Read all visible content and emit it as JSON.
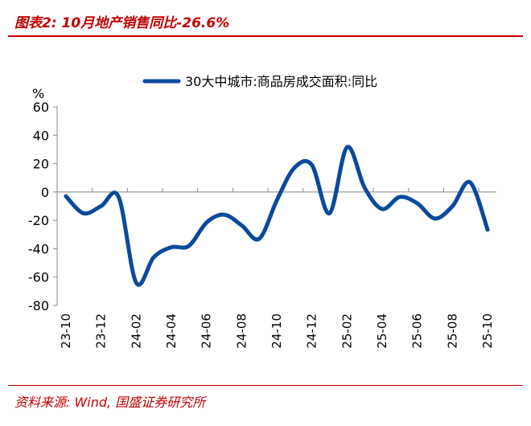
{
  "header": {
    "title": "图表2:  10月地产销售同比-26.6%"
  },
  "footer": {
    "source": "资料来源: Wind, 国盛证券研究所"
  },
  "colors": {
    "accent": "#c00000",
    "series": "#0a4a9c",
    "axis": "#888888"
  },
  "chart_data": {
    "type": "line",
    "title": "",
    "ylabel": "%",
    "ylim": [
      -80,
      60
    ],
    "yticks": [
      60,
      40,
      20,
      0,
      -20,
      -40,
      -60,
      -80
    ],
    "grid": false,
    "legend": "top",
    "categories": [
      "23-10",
      "23-11",
      "23-12",
      "24-01",
      "24-02",
      "24-03",
      "24-04",
      "24-05",
      "24-06",
      "24-07",
      "24-08",
      "24-09",
      "24-10",
      "24-11",
      "24-12",
      "25-01",
      "25-02",
      "25-03",
      "25-04",
      "25-05",
      "25-06",
      "25-07",
      "25-08",
      "25-09",
      "25-10"
    ],
    "tick_labels": [
      "23-10",
      "23-12",
      "24-02",
      "24-04",
      "24-06",
      "24-08",
      "24-10",
      "24-12",
      "25-02",
      "25-04",
      "25-06",
      "25-08",
      "25-10"
    ],
    "series": [
      {
        "name": "30大中城市:商品房成交面积:同比",
        "values": [
          -3,
          -15,
          -10,
          -3.5,
          -64,
          -46,
          -39,
          -38,
          -21.6,
          -16,
          -23.5,
          -33,
          -6,
          17,
          19,
          -15,
          31.6,
          3,
          -12,
          -3.5,
          -8,
          -18.7,
          -10,
          6.8,
          -26.6
        ]
      }
    ]
  }
}
